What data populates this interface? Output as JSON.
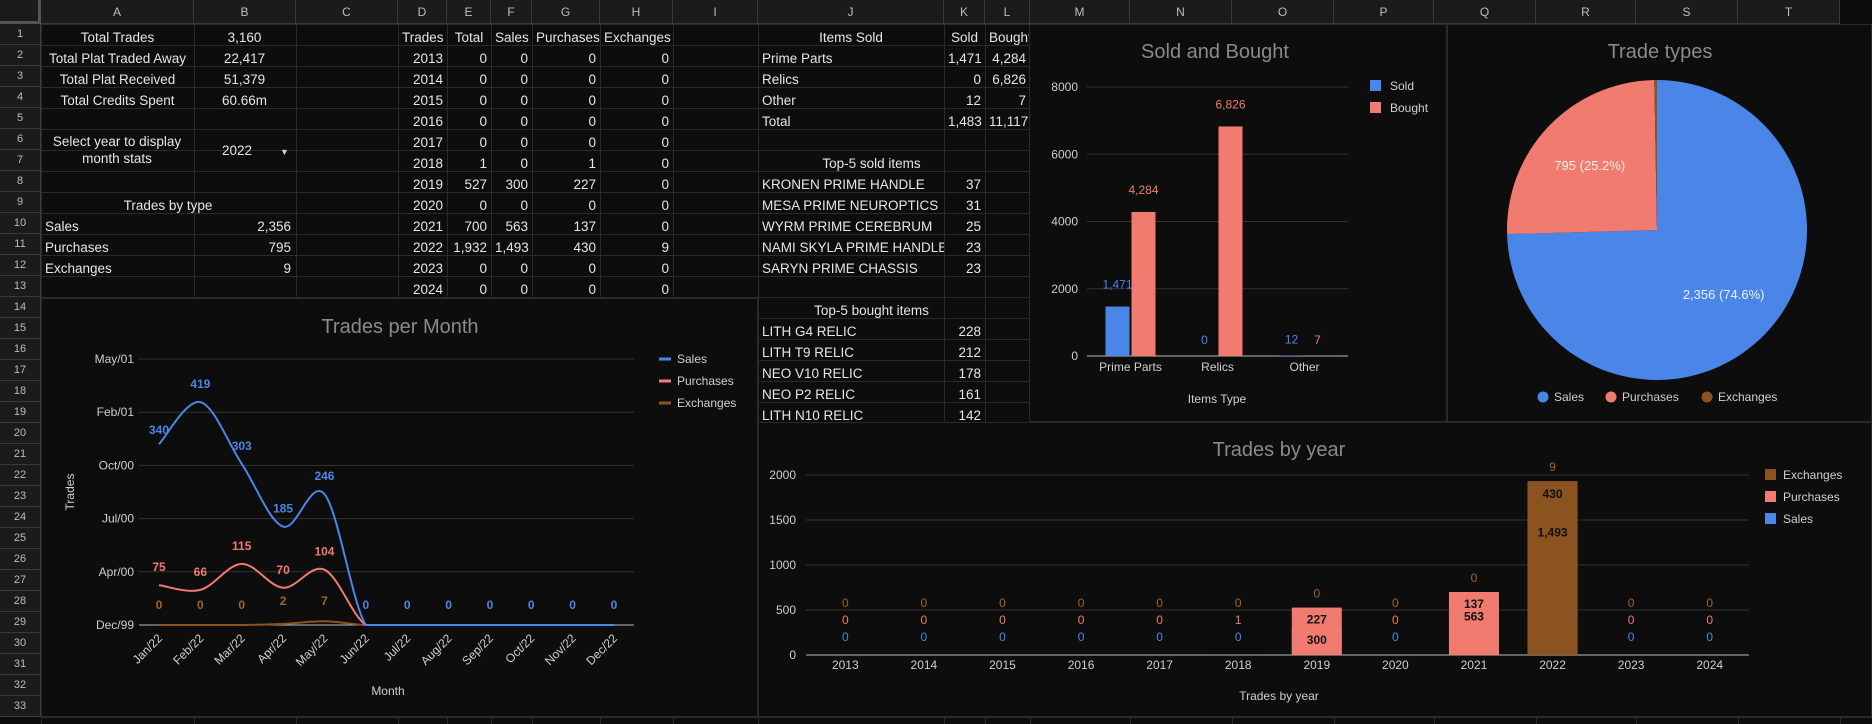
{
  "columns": [
    "A",
    "B",
    "C",
    "D",
    "E",
    "F",
    "G",
    "H",
    "I",
    "J",
    "K",
    "L",
    "M",
    "N",
    "O",
    "P",
    "Q",
    "R",
    "S",
    "T"
  ],
  "rows": [
    "1",
    "2",
    "3",
    "4",
    "5",
    "6",
    "7",
    "8",
    "9",
    "10",
    "11",
    "12",
    "13",
    "14",
    "15",
    "16",
    "17",
    "18",
    "19",
    "20",
    "21",
    "22",
    "23",
    "24",
    "25",
    "26",
    "27",
    "28",
    "29",
    "30",
    "31",
    "32",
    "33"
  ],
  "summary": {
    "total_trades_label": "Total Trades",
    "total_trades": "3,160",
    "plat_away_label": "Total Plat Traded Away",
    "plat_away": "22,417",
    "plat_received_label": "Total Plat Received",
    "plat_received": "51,379",
    "credits_label": "Total Credits Spent",
    "credits": "60.66m",
    "select_year_label": "Select year to display month stats",
    "selected_year": "2022",
    "trades_by_type_label": "Trades by type",
    "types": [
      {
        "label": "Sales",
        "value": "2,356"
      },
      {
        "label": "Purchases",
        "value": "795"
      },
      {
        "label": "Exchanges",
        "value": "9"
      }
    ]
  },
  "year_table": {
    "headers": [
      "Trades",
      "Total",
      "Sales",
      "Purchases",
      "Exchanges"
    ],
    "rows": [
      [
        "2013",
        "0",
        "0",
        "0",
        "0"
      ],
      [
        "2014",
        "0",
        "0",
        "0",
        "0"
      ],
      [
        "2015",
        "0",
        "0",
        "0",
        "0"
      ],
      [
        "2016",
        "0",
        "0",
        "0",
        "0"
      ],
      [
        "2017",
        "0",
        "0",
        "0",
        "0"
      ],
      [
        "2018",
        "1",
        "0",
        "1",
        "0"
      ],
      [
        "2019",
        "527",
        "300",
        "227",
        "0"
      ],
      [
        "2020",
        "0",
        "0",
        "0",
        "0"
      ],
      [
        "2021",
        "700",
        "563",
        "137",
        "0"
      ],
      [
        "2022",
        "1,932",
        "1,493",
        "430",
        "9"
      ],
      [
        "2023",
        "0",
        "0",
        "0",
        "0"
      ],
      [
        "2024",
        "0",
        "0",
        "0",
        "0"
      ]
    ]
  },
  "items_table": {
    "headers": [
      "Items Sold",
      "Sold",
      "Bought"
    ],
    "rows": [
      [
        "Prime Parts",
        "1,471",
        "4,284"
      ],
      [
        "Relics",
        "0",
        "6,826"
      ],
      [
        "Other",
        "12",
        "7"
      ],
      [
        "Total",
        "1,483",
        "11,117"
      ]
    ]
  },
  "top_sold": {
    "title": "Top-5 sold items",
    "rows": [
      [
        "KRONEN PRIME HANDLE",
        "37"
      ],
      [
        "MESA PRIME NEUROPTICS",
        "31"
      ],
      [
        "WYRM PRIME CEREBRUM",
        "25"
      ],
      [
        "NAMI SKYLA PRIME HANDLE",
        "23"
      ],
      [
        "SARYN PRIME CHASSIS",
        "23"
      ]
    ]
  },
  "top_bought": {
    "title": "Top-5 bought items",
    "rows": [
      [
        "LITH G4 RELIC",
        "228"
      ],
      [
        "LITH T9 RELIC",
        "212"
      ],
      [
        "NEO V10 RELIC",
        "178"
      ],
      [
        "NEO P2 RELIC",
        "161"
      ],
      [
        "LITH N10 RELIC",
        "142"
      ]
    ]
  },
  "colors": {
    "sales": "#4a86e8",
    "purchases": "#f07b6e",
    "exchanges": "#8a5320",
    "exchanges_label": "#a0651f",
    "title": "#8a8a8a",
    "axis_text": "#cfcfcf"
  },
  "chart_data": [
    {
      "type": "line",
      "title": "Trades per Month",
      "xlabel": "Month",
      "ylabel": "Trades",
      "categories": [
        "Jan/22",
        "Feb/22",
        "Mar/22",
        "Apr/22",
        "May/22",
        "Jun/22",
        "Jul/22",
        "Aug/22",
        "Sep/22",
        "Oct/22",
        "Nov/22",
        "Dec/22"
      ],
      "y_ticks": [
        "Dec/99",
        "Apr/00",
        "Jul/00",
        "Oct/00",
        "Feb/01",
        "May/01"
      ],
      "ylim": [
        0,
        500
      ],
      "series": [
        {
          "name": "Sales",
          "values": [
            340,
            419,
            303,
            185,
            246,
            0,
            0,
            0,
            0,
            0,
            0,
            0
          ],
          "labels": [
            "340",
            "419",
            "303",
            "185",
            "246",
            "0",
            "0",
            "0",
            "0",
            "0",
            "0",
            "0"
          ]
        },
        {
          "name": "Purchases",
          "values": [
            75,
            66,
            115,
            70,
            104,
            0,
            0,
            0,
            0,
            0,
            0,
            0
          ],
          "labels": [
            "75",
            "66",
            "115",
            "70",
            "104",
            "",
            "",
            "",
            "",
            "",
            "",
            ""
          ]
        },
        {
          "name": "Exchanges",
          "values": [
            0,
            0,
            0,
            2,
            7,
            0,
            0,
            0,
            0,
            0,
            0,
            0
          ],
          "labels": [
            "0",
            "0",
            "0",
            "2",
            "7",
            "",
            "",
            "",
            "",
            "",
            "",
            ""
          ]
        }
      ],
      "legend": "right"
    },
    {
      "type": "bar",
      "title": "Sold and Bought",
      "xlabel": "Items Type",
      "categories": [
        "Prime Parts",
        "Relics",
        "Other"
      ],
      "ylim": [
        0,
        8000
      ],
      "y_ticks": [
        "0",
        "2000",
        "4000",
        "6000",
        "8000"
      ],
      "series": [
        {
          "name": "Sold",
          "values": [
            1471,
            0,
            12
          ],
          "labels": [
            "1,471",
            "0",
            "12"
          ]
        },
        {
          "name": "Bought",
          "values": [
            4284,
            6826,
            7
          ],
          "labels": [
            "4,284",
            "6,826",
            "7"
          ]
        }
      ],
      "legend": "top-right"
    },
    {
      "type": "pie",
      "title": "Trade types",
      "series": [
        {
          "name": "Sales",
          "value": 2356,
          "label": "2,356 (74.6%)"
        },
        {
          "name": "Purchases",
          "value": 795,
          "label": "795 (25.2%)"
        },
        {
          "name": "Exchanges",
          "value": 9,
          "label": ""
        }
      ],
      "legend": "bottom"
    },
    {
      "type": "bar",
      "stacked": true,
      "title": "Trades by year",
      "xlabel": "Trades by year",
      "categories": [
        "2013",
        "2014",
        "2015",
        "2016",
        "2017",
        "2018",
        "2019",
        "2020",
        "2021",
        "2022",
        "2023",
        "2024"
      ],
      "ylim": [
        0,
        2000
      ],
      "y_ticks": [
        "0",
        "500",
        "1000",
        "1500",
        "2000"
      ],
      "series": [
        {
          "name": "Sales",
          "values": [
            0,
            0,
            0,
            0,
            0,
            0,
            300,
            0,
            563,
            1493,
            0,
            0
          ],
          "labels": [
            "0",
            "0",
            "0",
            "0",
            "0",
            "0",
            "300",
            "0",
            "563",
            "1,493",
            "0",
            "0"
          ]
        },
        {
          "name": "Purchases",
          "values": [
            0,
            0,
            0,
            0,
            0,
            1,
            227,
            0,
            137,
            430,
            0,
            0
          ],
          "labels": [
            "0",
            "0",
            "0",
            "0",
            "0",
            "1",
            "227",
            "0",
            "137",
            "430",
            "0",
            "0"
          ]
        },
        {
          "name": "Exchanges",
          "values": [
            0,
            0,
            0,
            0,
            0,
            0,
            0,
            0,
            0,
            9,
            0,
            0
          ],
          "labels": [
            "0",
            "0",
            "0",
            "0",
            "0",
            "0",
            "0",
            "0",
            "0",
            "9",
            "0",
            "0"
          ]
        }
      ],
      "legend_order": [
        "Exchanges",
        "Purchases",
        "Sales"
      ],
      "legend": "right"
    }
  ]
}
